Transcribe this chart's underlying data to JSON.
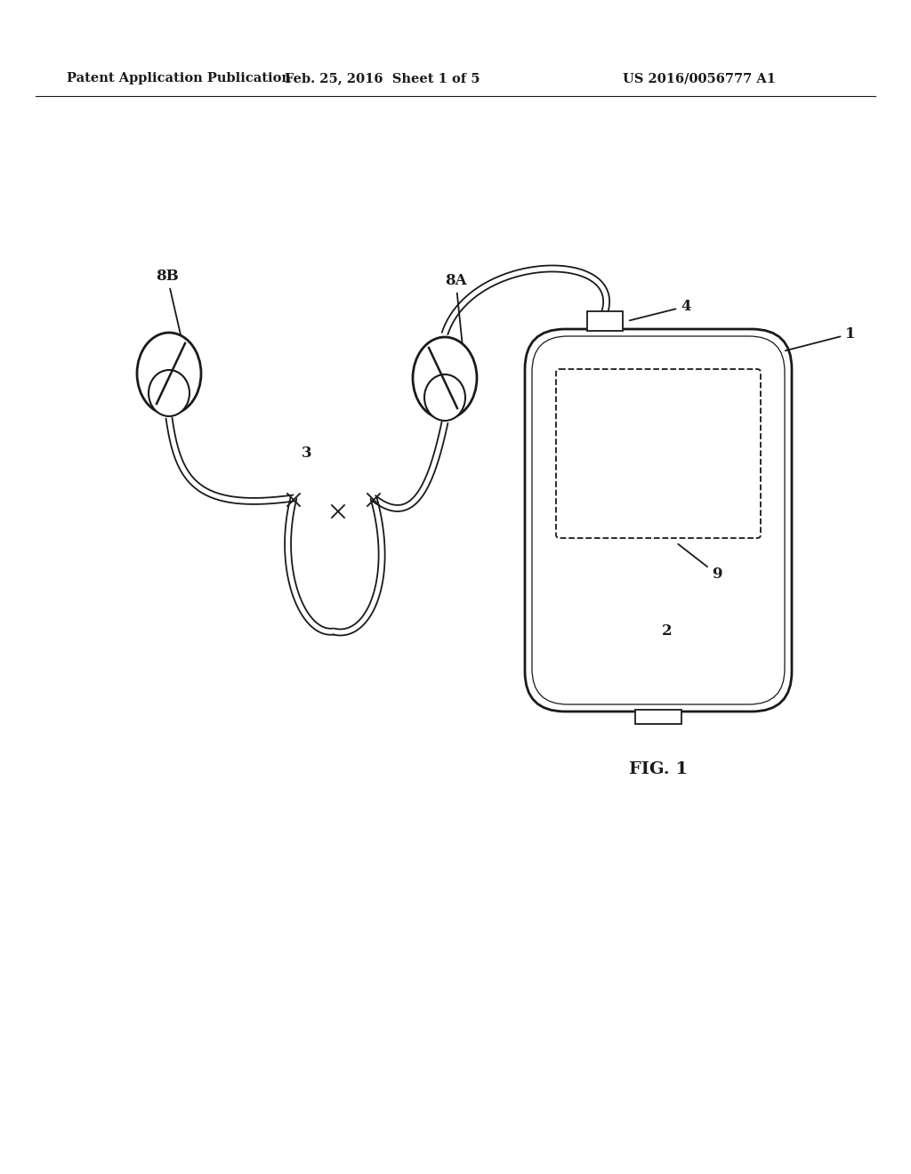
{
  "bg_color": "#ffffff",
  "line_color": "#1a1a1a",
  "header_left": "Patent Application Publication",
  "header_mid": "Feb. 25, 2016  Sheet 1 of 5",
  "header_right": "US 2016/0056777 A1",
  "fig_label": "FIG. 1"
}
